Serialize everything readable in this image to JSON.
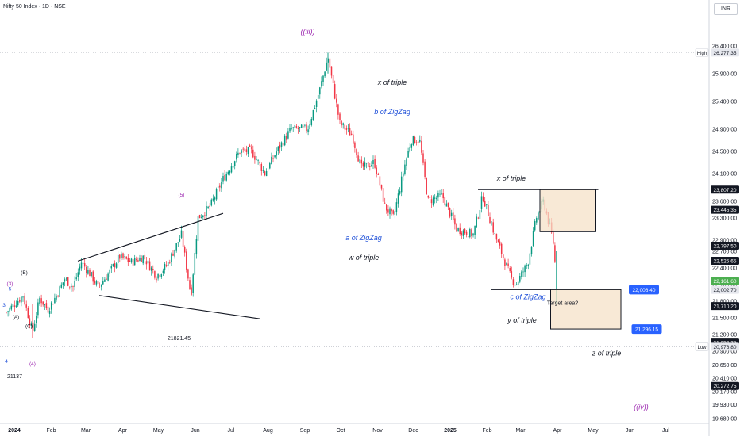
{
  "header": {
    "title": "Nifty 50 Index · 1D · NSE",
    "currency": "INR"
  },
  "chart_data": {
    "type": "candlestick",
    "symbol": "Nifty 50 Index",
    "interval": "1D",
    "exchange": "NSE",
    "ylim": [
      19400,
      26700
    ],
    "y_ticks": [
      19680,
      19930,
      20170,
      20410,
      20650,
      20900,
      21200,
      21500,
      21800,
      22100,
      22400,
      22700,
      22900,
      23300,
      23600,
      24100,
      24500,
      24900,
      25400,
      25900,
      26400
    ],
    "y_tick_labels": [
      "19,680.00",
      "19,930.00",
      "20,170.00",
      "20,410.00",
      "20,650.00",
      "20,900.00",
      "21,200.00",
      "21,500.00",
      "21,800.00",
      "22,100.00",
      "22,400.00",
      "22,700.00",
      "22,900.00",
      "23,300.00",
      "23,600.00",
      "24,100.00",
      "24,500.00",
      "24,900.00",
      "25,400.00",
      "25,900.00",
      "26,400.00"
    ],
    "x_labels": [
      "2024",
      "Feb",
      "Mar",
      "Apr",
      "May",
      "Jun",
      "Jul",
      "Aug",
      "Sep",
      "Oct",
      "Nov",
      "Dec",
      "2025",
      "Feb",
      "Mar",
      "Apr",
      "May",
      "Jun",
      "Jul"
    ],
    "price_tags": [
      {
        "text": "26,277.35",
        "value": 26277.35,
        "color": "#e6e8ee",
        "fg": "#131722",
        "side_label": "High"
      },
      {
        "text": "23,807.20",
        "value": 23807.2,
        "color": "#131722",
        "fg": "#ffffff"
      },
      {
        "text": "23,445.35",
        "value": 23445.35,
        "color": "#131722",
        "fg": "#ffffff"
      },
      {
        "text": "22,797.50",
        "value": 22797.5,
        "color": "#131722",
        "fg": "#ffffff"
      },
      {
        "text": "22,525.65",
        "value": 22525.65,
        "color": "#131722",
        "fg": "#ffffff"
      },
      {
        "text": "22,161.60",
        "value": 22161.6,
        "color": "#4caf50",
        "fg": "#ffffff"
      },
      {
        "text": "22,002.70",
        "value": 22002.7,
        "color": "#e6e8ee",
        "fg": "#131722"
      },
      {
        "text": "21,710.20",
        "value": 21710.2,
        "color": "#131722",
        "fg": "#ffffff"
      },
      {
        "text": "21,052.25",
        "value": 21052.25,
        "color": "#131722",
        "fg": "#ffffff"
      },
      {
        "text": "20,976.80",
        "value": 20976.8,
        "color": "#e6e8ee",
        "fg": "#131722",
        "side_label": "Low"
      },
      {
        "text": "20,272.75",
        "value": 20272.75,
        "color": "#131722",
        "fg": "#ffffff"
      }
    ],
    "target_labels": [
      {
        "text": "22,006.40",
        "value": 22006.4
      },
      {
        "text": "21,296.15",
        "value": 21296.15
      }
    ],
    "annotations": [
      {
        "text": "((iii))",
        "color": "#9c27b0",
        "style": "italic"
      },
      {
        "text": "x of triple",
        "color": "#131722",
        "style": "italic"
      },
      {
        "text": "b of ZigZag",
        "color": "#1e4fd8",
        "style": "italic"
      },
      {
        "text": "a of ZigZag",
        "color": "#1e4fd8",
        "style": "italic"
      },
      {
        "text": "w of triple",
        "color": "#131722",
        "style": "italic"
      },
      {
        "text": "x of triple",
        "color": "#131722",
        "style": "italic"
      },
      {
        "text": "c of ZigZag",
        "color": "#1e4fd8",
        "style": "italic"
      },
      {
        "text": "y of triple",
        "color": "#131722",
        "style": "italic"
      },
      {
        "text": "z of triple",
        "color": "#131722",
        "style": "italic"
      },
      {
        "text": "((iv))",
        "color": "#9c27b0",
        "style": "italic"
      },
      {
        "text": "Target area?",
        "color": "#131722",
        "style": "normal"
      },
      {
        "text": "21821.45",
        "color": "#131722",
        "style": "normal"
      },
      {
        "text": "21137",
        "color": "#131722",
        "style": "normal"
      },
      {
        "text": "(5)",
        "color": "#9c27b0",
        "style": "normal"
      },
      {
        "text": "(B)",
        "color": "#131722",
        "style": "normal"
      },
      {
        "text": "(A)",
        "color": "#131722",
        "style": "normal"
      },
      {
        "text": "(C)",
        "color": "#131722",
        "style": "normal"
      },
      {
        "text": "(3)",
        "color": "#9c27b0",
        "style": "normal"
      },
      {
        "text": "(4)",
        "color": "#9c27b0",
        "style": "normal"
      },
      {
        "text": "5",
        "color": "#1e4fd8",
        "style": "normal"
      },
      {
        "text": "4",
        "color": "#1e4fd8",
        "style": "normal"
      },
      {
        "text": "3",
        "color": "#1e4fd8",
        "style": "normal"
      }
    ],
    "price_path": [
      [
        "2024-01-01",
        21600
      ],
      [
        "2024-01-08",
        21750
      ],
      [
        "2024-01-15",
        21900
      ],
      [
        "2024-01-23",
        21240
      ],
      [
        "2024-01-29",
        21850
      ],
      [
        "2024-02-05",
        21650
      ],
      [
        "2024-02-12",
        21900
      ],
      [
        "2024-02-19",
        22200
      ],
      [
        "2024-02-26",
        22050
      ],
      [
        "2024-03-04",
        22500
      ],
      [
        "2024-03-11",
        22300
      ],
      [
        "2024-03-18",
        22050
      ],
      [
        "2024-03-27",
        22300
      ],
      [
        "2024-04-05",
        22600
      ],
      [
        "2024-04-15",
        22500
      ],
      [
        "2024-04-25",
        22600
      ],
      [
        "2024-05-06",
        22250
      ],
      [
        "2024-05-15",
        22450
      ],
      [
        "2024-05-27",
        23000
      ],
      [
        "2024-06-04",
        21900
      ],
      [
        "2024-06-10",
        23300
      ],
      [
        "2024-06-20",
        23500
      ],
      [
        "2024-07-01",
        24000
      ],
      [
        "2024-07-15",
        24500
      ],
      [
        "2024-07-25",
        24500
      ],
      [
        "2024-08-05",
        24100
      ],
      [
        "2024-08-15",
        24500
      ],
      [
        "2024-08-27",
        24900
      ],
      [
        "2024-09-10",
        24900
      ],
      [
        "2024-09-20",
        25600
      ],
      [
        "2024-09-27",
        26200
      ],
      [
        "2024-10-07",
        25000
      ],
      [
        "2024-10-17",
        24800
      ],
      [
        "2024-10-25",
        24200
      ],
      [
        "2024-11-05",
        24300
      ],
      [
        "2024-11-14",
        23500
      ],
      [
        "2024-11-21",
        23300
      ],
      [
        "2024-12-01",
        24300
      ],
      [
        "2024-12-06",
        24700
      ],
      [
        "2024-12-13",
        24700
      ],
      [
        "2024-12-20",
        23600
      ],
      [
        "2025-01-01",
        23700
      ],
      [
        "2025-01-13",
        23100
      ],
      [
        "2025-01-27",
        23000
      ],
      [
        "2025-02-04",
        23700
      ],
      [
        "2025-02-14",
        23000
      ],
      [
        "2025-02-28",
        22200
      ],
      [
        "2025-03-04",
        22100
      ],
      [
        "2025-03-14",
        22500
      ],
      [
        "2025-03-21",
        23300
      ],
      [
        "2025-03-27",
        23600
      ],
      [
        "2025-04-04",
        22900
      ],
      [
        "2025-04-07",
        22161.6
      ]
    ]
  }
}
